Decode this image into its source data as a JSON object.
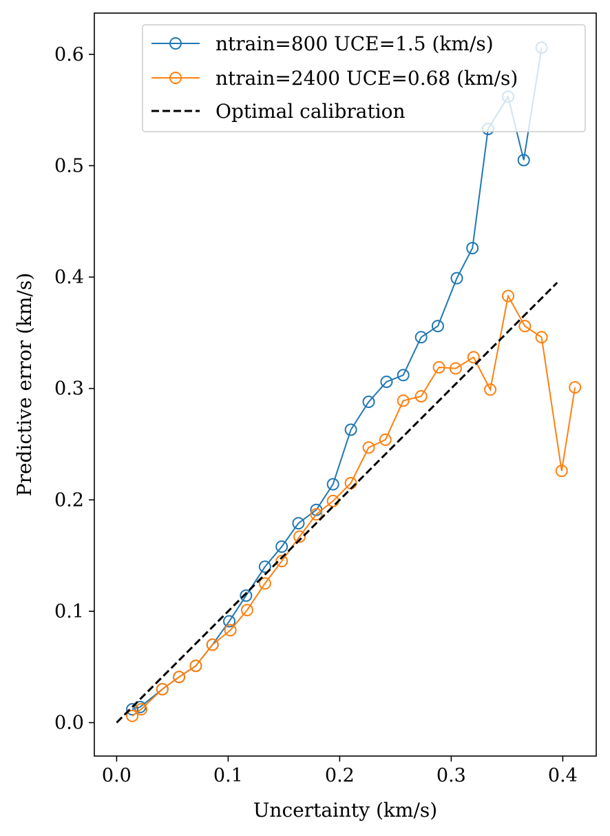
{
  "chart_data": {
    "type": "line",
    "title": "",
    "xlabel": "Uncertainty (km/s)",
    "ylabel": "Predictive error (km/s)",
    "xlim": [
      -0.02,
      0.43
    ],
    "ylim": [
      -0.03,
      0.637
    ],
    "x_ticks": [
      "0.0",
      "0.1",
      "0.2",
      "0.3",
      "0.4"
    ],
    "y_ticks": [
      "0.0",
      "0.1",
      "0.2",
      "0.3",
      "0.4",
      "0.5",
      "0.6"
    ],
    "grid": false,
    "legend_position": "top-right",
    "series": [
      {
        "name": "ntrain=800 UCE=1.5 (km/s)",
        "color": "#1f77b4",
        "marker": "open-circle",
        "x": [
          0.014,
          0.021,
          0.041,
          0.056,
          0.071,
          0.086,
          0.101,
          0.116,
          0.133,
          0.148,
          0.163,
          0.179,
          0.194,
          0.21,
          0.226,
          0.242,
          0.257,
          0.273,
          0.288,
          0.305,
          0.319,
          0.333,
          0.351,
          0.365,
          0.381
        ],
        "y": [
          0.012,
          0.014,
          0.03,
          0.041,
          0.051,
          0.07,
          0.091,
          0.114,
          0.14,
          0.158,
          0.179,
          0.191,
          0.214,
          0.263,
          0.288,
          0.306,
          0.312,
          0.346,
          0.356,
          0.399,
          0.426,
          0.533,
          0.562,
          0.505,
          0.606
        ]
      },
      {
        "name": "ntrain=2400 UCE=0.68 (km/s)",
        "color": "#ff7f0e",
        "marker": "open-circle",
        "x": [
          0.014,
          0.022,
          0.041,
          0.056,
          0.071,
          0.086,
          0.102,
          0.117,
          0.133,
          0.148,
          0.164,
          0.179,
          0.194,
          0.21,
          0.226,
          0.241,
          0.257,
          0.273,
          0.289,
          0.304,
          0.32,
          0.335,
          0.351,
          0.366,
          0.381,
          0.399,
          0.411
        ],
        "y": [
          0.006,
          0.012,
          0.03,
          0.041,
          0.051,
          0.07,
          0.083,
          0.101,
          0.125,
          0.145,
          0.167,
          0.187,
          0.199,
          0.215,
          0.247,
          0.254,
          0.289,
          0.293,
          0.319,
          0.318,
          0.328,
          0.299,
          0.383,
          0.356,
          0.346,
          0.226,
          0.301
        ]
      },
      {
        "name": "Optimal calibration",
        "color": "#000000",
        "style": "dashed",
        "x": [
          0.0,
          0.395
        ],
        "y": [
          0.0,
          0.395
        ]
      }
    ]
  }
}
